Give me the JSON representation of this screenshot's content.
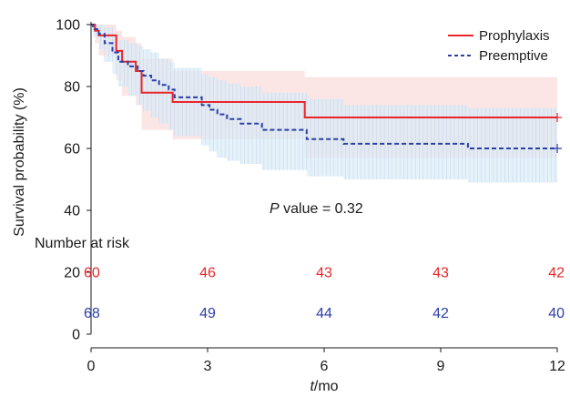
{
  "chart_data": {
    "type": "line",
    "xlabel": "t/mo",
    "xlabel_italic": "t",
    "xlabel_rest": "/mo",
    "ylabel": "Survival probability (%)",
    "xlim": [
      0,
      12
    ],
    "ylim": [
      0,
      100
    ],
    "x_ticks": [
      0,
      3,
      6,
      9,
      12
    ],
    "y_ticks": [
      0,
      20,
      40,
      60,
      80,
      100
    ],
    "legend_position": "top-right",
    "annotation": {
      "italic": "P",
      "text": " value = 0.32"
    },
    "risk_title": "Number at risk",
    "series": [
      {
        "name": "Prophylaxis",
        "color": "#e8262a",
        "band_color": "#fbdcdc",
        "dash": "solid",
        "steps": [
          [
            0,
            100
          ],
          [
            0.1,
            98
          ],
          [
            0.2,
            96.5
          ],
          [
            0.65,
            91.5
          ],
          [
            0.8,
            88
          ],
          [
            1.15,
            85
          ],
          [
            1.3,
            78
          ],
          [
            2.1,
            75
          ],
          [
            5.45,
            75
          ],
          [
            5.5,
            70
          ],
          [
            12,
            70
          ]
        ],
        "ci_lower": [
          [
            0,
            100
          ],
          [
            0.1,
            94
          ],
          [
            0.2,
            90
          ],
          [
            0.65,
            82
          ],
          [
            0.8,
            77
          ],
          [
            1.15,
            74
          ],
          [
            1.3,
            66
          ],
          [
            2.1,
            63
          ],
          [
            5.5,
            57
          ],
          [
            12,
            57
          ]
        ],
        "ci_upper": [
          [
            0,
            100
          ],
          [
            0.1,
            100
          ],
          [
            0.2,
            100
          ],
          [
            0.65,
            98
          ],
          [
            0.8,
            96
          ],
          [
            1.15,
            94
          ],
          [
            1.3,
            89
          ],
          [
            2.1,
            85
          ],
          [
            5.5,
            83
          ],
          [
            12,
            83
          ]
        ],
        "censored_at": [
          12
        ],
        "at_risk": [
          60,
          46,
          43,
          43,
          42
        ]
      },
      {
        "name": "Preemptive",
        "color": "#2b3fa8",
        "band_color": "#d8ecf8",
        "dash": "dashed",
        "steps": [
          [
            0,
            100
          ],
          [
            0.05,
            98.5
          ],
          [
            0.2,
            97
          ],
          [
            0.35,
            94
          ],
          [
            0.55,
            91
          ],
          [
            0.7,
            88
          ],
          [
            0.95,
            86.5
          ],
          [
            1.2,
            85
          ],
          [
            1.35,
            83.5
          ],
          [
            1.55,
            82
          ],
          [
            1.75,
            80.5
          ],
          [
            2.0,
            79
          ],
          [
            2.15,
            76.5
          ],
          [
            2.85,
            74
          ],
          [
            3.05,
            72.5
          ],
          [
            3.25,
            71
          ],
          [
            3.5,
            69.5
          ],
          [
            3.85,
            68
          ],
          [
            4.4,
            66
          ],
          [
            5.55,
            63
          ],
          [
            6.5,
            61.5
          ],
          [
            9.7,
            60
          ],
          [
            12,
            60
          ]
        ],
        "ci_lower": [
          [
            0,
            100
          ],
          [
            0.05,
            96
          ],
          [
            0.2,
            92
          ],
          [
            0.35,
            88
          ],
          [
            0.55,
            84
          ],
          [
            0.7,
            80
          ],
          [
            0.95,
            77
          ],
          [
            1.2,
            74
          ],
          [
            1.35,
            72
          ],
          [
            1.55,
            70
          ],
          [
            1.75,
            68
          ],
          [
            2.0,
            66
          ],
          [
            2.15,
            64
          ],
          [
            2.85,
            61
          ],
          [
            3.05,
            59
          ],
          [
            3.25,
            57
          ],
          [
            3.5,
            56
          ],
          [
            3.85,
            55
          ],
          [
            4.4,
            53
          ],
          [
            5.55,
            51
          ],
          [
            6.5,
            50
          ],
          [
            9.7,
            49
          ],
          [
            12,
            49
          ]
        ],
        "ci_upper": [
          [
            0,
            100
          ],
          [
            0.05,
            100
          ],
          [
            0.2,
            100
          ],
          [
            0.35,
            99
          ],
          [
            0.55,
            97
          ],
          [
            0.7,
            95
          ],
          [
            0.95,
            94
          ],
          [
            1.2,
            93
          ],
          [
            1.35,
            92
          ],
          [
            1.55,
            91
          ],
          [
            1.75,
            89
          ],
          [
            2.0,
            88
          ],
          [
            2.15,
            86
          ],
          [
            2.85,
            84
          ],
          [
            3.05,
            83
          ],
          [
            3.25,
            82
          ],
          [
            3.5,
            81
          ],
          [
            3.85,
            80
          ],
          [
            4.4,
            78
          ],
          [
            5.55,
            76
          ],
          [
            6.5,
            74
          ],
          [
            9.7,
            73
          ],
          [
            12,
            73
          ]
        ],
        "censored_at": [
          12
        ],
        "at_risk": [
          68,
          49,
          44,
          42,
          40
        ]
      }
    ]
  }
}
